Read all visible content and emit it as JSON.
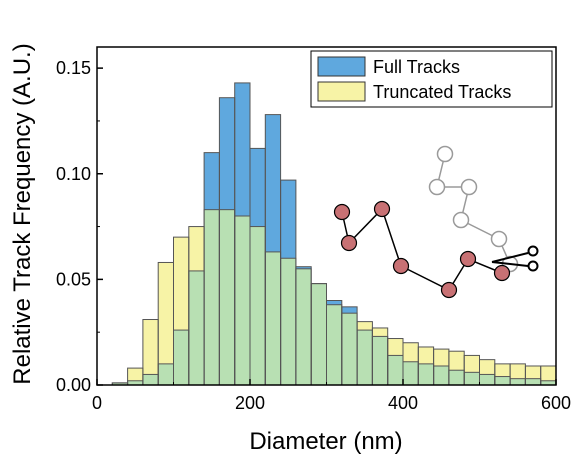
{
  "chart_data": {
    "type": "bar",
    "xlabel": "Diameter (nm)",
    "ylabel": "Relative Track Frequency (A.U.)",
    "xlim": [
      0,
      600
    ],
    "ylim": [
      0,
      0.16
    ],
    "xticks": [
      0,
      200,
      400,
      600
    ],
    "yticks": [
      0.0,
      0.05,
      0.1,
      0.15
    ],
    "x_tick_labels": [
      "0",
      "200",
      "400",
      "600"
    ],
    "y_tick_labels": [
      "0.00",
      "0.05",
      "0.10",
      "0.15"
    ],
    "bin_width": 20,
    "bin_starts": [
      20,
      40,
      60,
      80,
      100,
      120,
      140,
      160,
      180,
      200,
      220,
      240,
      260,
      280,
      300,
      320,
      340,
      360,
      380,
      400,
      420,
      440,
      460,
      480,
      500,
      520,
      540,
      560,
      580
    ],
    "legend_position": "top-right",
    "series": [
      {
        "name": "Full Tracks",
        "color": "#5fa8de",
        "values": [
          0.001,
          0.002,
          0.005,
          0.01,
          0.026,
          0.054,
          0.11,
          0.136,
          0.143,
          0.112,
          0.128,
          0.097,
          0.056,
          0.048,
          0.04,
          0.037,
          0.026,
          0.023,
          0.014,
          0.011,
          0.01,
          0.009,
          0.007,
          0.006,
          0.005,
          0.004,
          0.003,
          0.003,
          0.002
        ]
      },
      {
        "name": "Truncated Tracks",
        "color": "#f7f3a6",
        "values": [
          0.001,
          0.008,
          0.031,
          0.058,
          0.07,
          0.075,
          0.083,
          0.083,
          0.08,
          0.075,
          0.063,
          0.06,
          0.055,
          0.048,
          0.038,
          0.034,
          0.03,
          0.027,
          0.022,
          0.02,
          0.018,
          0.017,
          0.016,
          0.014,
          0.012,
          0.01,
          0.01,
          0.009,
          0.009
        ]
      }
    ],
    "overlap_color": "#b8e0b3",
    "inset": {
      "red_nodes": [
        [
          342,
          212
        ],
        [
          349,
          243
        ],
        [
          382,
          209
        ],
        [
          401,
          266
        ],
        [
          449,
          290
        ],
        [
          468,
          259
        ],
        [
          502,
          273
        ]
      ],
      "gray_nodes": [
        [
          445,
          154
        ],
        [
          437,
          187
        ],
        [
          469,
          187
        ],
        [
          461,
          220
        ],
        [
          499,
          239
        ],
        [
          510,
          264
        ]
      ],
      "scissors_icon": "scissors-icon",
      "red_color": "#c87174",
      "gray_color": "#9a9a9a"
    }
  }
}
